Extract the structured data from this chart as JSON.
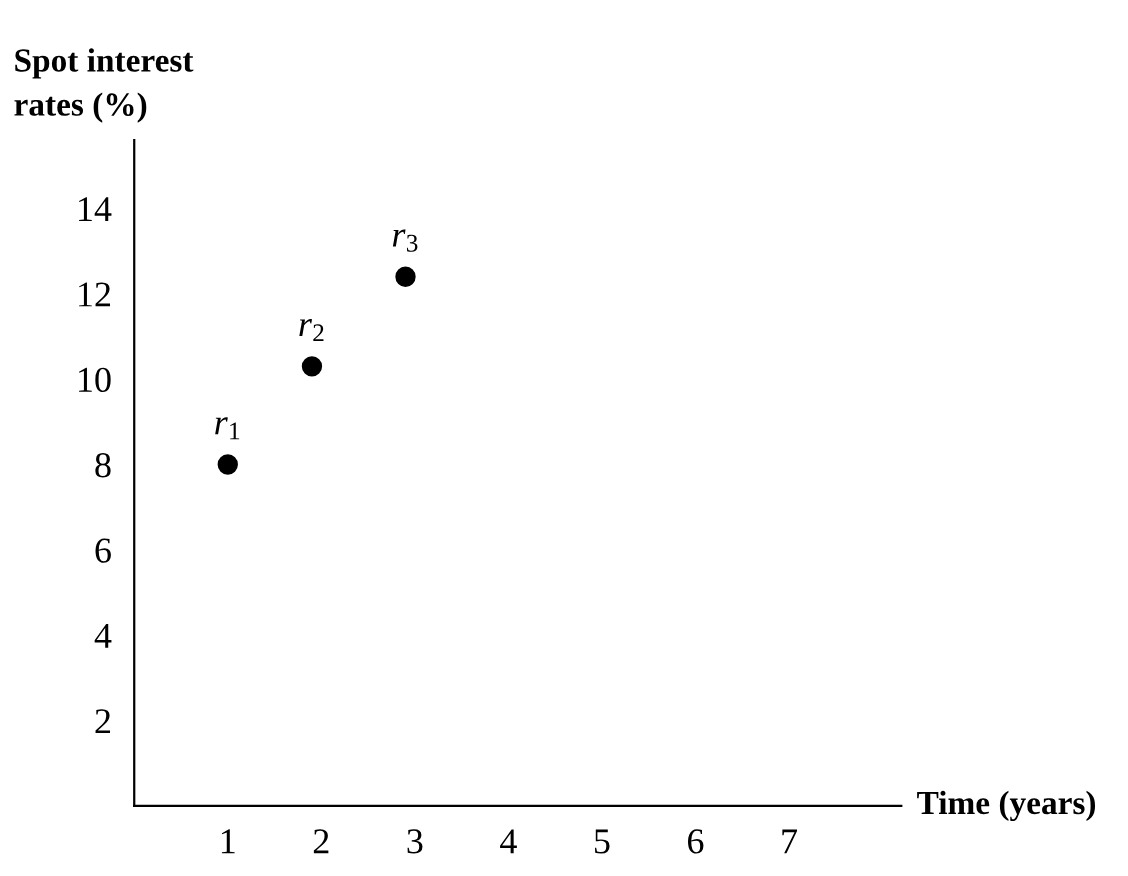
{
  "chart_data": {
    "type": "scatter",
    "ylabel": "Spot interest\nrates (%)",
    "xlabel": "Time (years)",
    "x": [
      1,
      1.9,
      2.9
    ],
    "series": [
      {
        "color": "#000000",
        "values": [
          8,
          10.3,
          12.4
        ]
      }
    ],
    "annotations": [
      {
        "text": "r$_{1}$",
        "x": 1,
        "y": 8
      },
      {
        "text": "r$_{2}$",
        "x": 1.9,
        "y": 10.3
      },
      {
        "text": "r$_{3}$",
        "x": 2.9,
        "y": 12.4
      }
    ],
    "xlim": [
      0,
      8.2
    ],
    "ylim": [
      0,
      15.6
    ],
    "xticks": [
      1,
      2,
      3,
      4,
      5,
      6,
      7
    ],
    "yticks": [
      2,
      4,
      6,
      8,
      10,
      12,
      14
    ],
    "marker": "circle",
    "grid": false,
    "legend": false
  }
}
